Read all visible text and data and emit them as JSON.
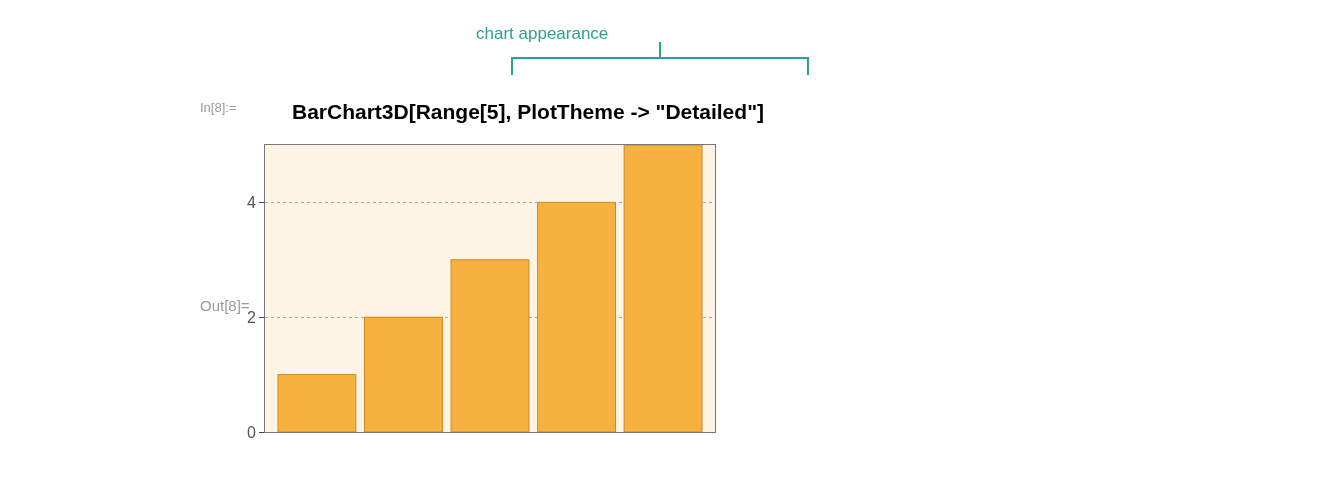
{
  "chart_data": {
    "type": "bar",
    "categories": [
      null,
      null,
      null,
      null,
      null
    ],
    "values": [
      1,
      2,
      3,
      4,
      5
    ],
    "color": "#f7b13f",
    "ylim": [
      0,
      5
    ],
    "yticks": [
      0,
      2,
      4
    ],
    "grid": true,
    "annotations": [
      "chart appearance",
      "In[8]:=",
      "BarChart3D[Range[5], PlotTheme -> \"Detailed\"]",
      "Out[8]="
    ]
  }
}
